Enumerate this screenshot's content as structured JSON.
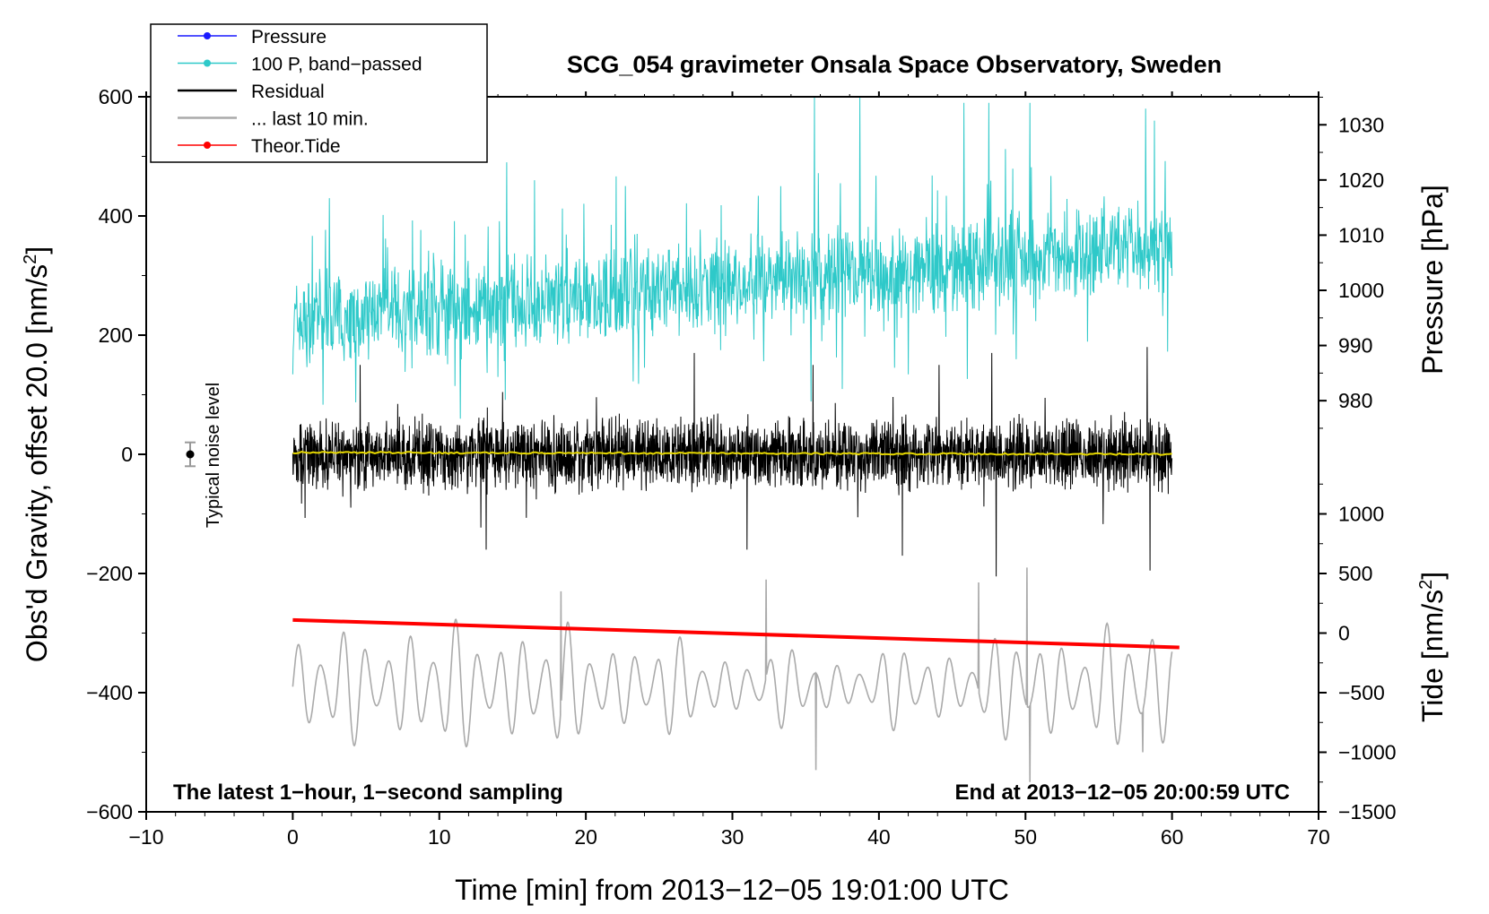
{
  "chart_data": {
    "type": "line",
    "title": "SCG_054 gravimeter Onsala Space Observatory, Sweden",
    "xlabel": "Time [min] from 2013−12−05 19:01:00 UTC",
    "ylabel_left": "Obs'd Gravity, offset 20.0 [nm/s",
    "ylabel_right_top": "Pressure [hPa]",
    "ylabel_right_bottom": "Tide [nm/s",
    "units_superscript": "2",
    "units_close": "]",
    "xlim": [
      -10,
      70
    ],
    "ylim": [
      -600,
      600
    ],
    "x_ticks": [
      -10,
      0,
      10,
      20,
      30,
      40,
      50,
      60,
      70
    ],
    "x_tick_labels": [
      "−10",
      "0",
      "10",
      "20",
      "30",
      "40",
      "50",
      "60",
      "70"
    ],
    "y_ticks": [
      600,
      400,
      200,
      0,
      -200,
      -400,
      -600
    ],
    "y_tick_labels": [
      "600",
      "400",
      "200",
      "0",
      "−200",
      "−400",
      "−600"
    ],
    "pressure_axis": {
      "ticks": [
        1030,
        1020,
        1010,
        1000,
        990,
        980
      ],
      "tick_labels": [
        "1030",
        "1020",
        "1010",
        "1000",
        "990",
        "980"
      ],
      "map": {
        "hpa_a": 980,
        "g_a": 90,
        "hpa_b": 1030,
        "g_b": 553
      }
    },
    "tide_axis": {
      "ticks": [
        1000,
        500,
        0,
        -500,
        -1000,
        -1500
      ],
      "tick_labels": [
        "1000",
        "500",
        "0",
        "−500",
        "−1000",
        "−1500"
      ],
      "map": {
        "tide_a": 1000,
        "g_a": -100,
        "tide_b": -1500,
        "g_b": -600
      }
    },
    "legend": [
      {
        "label": "Pressure",
        "color": "#1a1aff",
        "marker": true
      },
      {
        "label": "100 P, band−passed",
        "color": "#2ec9c9",
        "marker": true
      },
      {
        "label": "Residual",
        "color": "#000000",
        "marker": false
      },
      {
        "label": "... last 10 min.",
        "color": "#aaaaaa",
        "marker": false
      },
      {
        "label": "Theor.Tide",
        "color": "#ff0000",
        "marker": true
      }
    ],
    "annotations": {
      "left": "The latest 1−hour, 1−second sampling",
      "right": "End at 2013−12−05 20:00:59 UTC",
      "noise": "Typical noise level"
    },
    "noise_marker": {
      "x": -7,
      "y": 0,
      "err": 20
    },
    "theor_tide": {
      "x": [
        0,
        60.5
      ],
      "y": [
        -278,
        -324
      ]
    },
    "residual_mean": {
      "x": [
        0,
        60
      ],
      "y": [
        3,
        0
      ]
    },
    "series": [
      {
        "name": "Pressure",
        "color": "#1a1aff"
      },
      {
        "name": "100 P, band−passed",
        "color": "#2ec9c9",
        "x_range": [
          0,
          60
        ],
        "center": [
          220,
          350
        ],
        "amplitude": 75,
        "spikes": [
          [
            2.5,
            430
          ],
          [
            14.6,
            490
          ],
          [
            16.5,
            460
          ],
          [
            23.5,
            370
          ],
          [
            35.6,
            600
          ],
          [
            38.7,
            600
          ],
          [
            45.8,
            590
          ],
          [
            47.5,
            590
          ],
          [
            50.3,
            590
          ],
          [
            58.2,
            580
          ],
          [
            58.8,
            560
          ]
        ]
      },
      {
        "name": "Residual",
        "color": "#000000",
        "x_range": [
          0,
          60
        ],
        "amplitude": 55,
        "spikes": [
          [
            4.6,
            150
          ],
          [
            13.2,
            -160
          ],
          [
            27.4,
            170
          ],
          [
            31.0,
            -160
          ],
          [
            35.5,
            150
          ],
          [
            41.6,
            -170
          ],
          [
            44.1,
            150
          ],
          [
            47.7,
            170
          ],
          [
            48.0,
            -205
          ],
          [
            58.3,
            180
          ],
          [
            58.5,
            -195
          ]
        ]
      },
      {
        "name": "... last 10 min.",
        "color": "#aaaaaa",
        "x_range": [
          0,
          60
        ],
        "center": -390,
        "amplitude": 85,
        "peaks": [
          [
            18.3,
            -230
          ],
          [
            32.3,
            -210
          ],
          [
            35.7,
            -530
          ],
          [
            46.8,
            -215
          ],
          [
            50.1,
            -190
          ],
          [
            50.3,
            -550
          ],
          [
            58.0,
            -500
          ]
        ]
      },
      {
        "name": "Theor.Tide",
        "color": "#ff0000"
      }
    ]
  }
}
